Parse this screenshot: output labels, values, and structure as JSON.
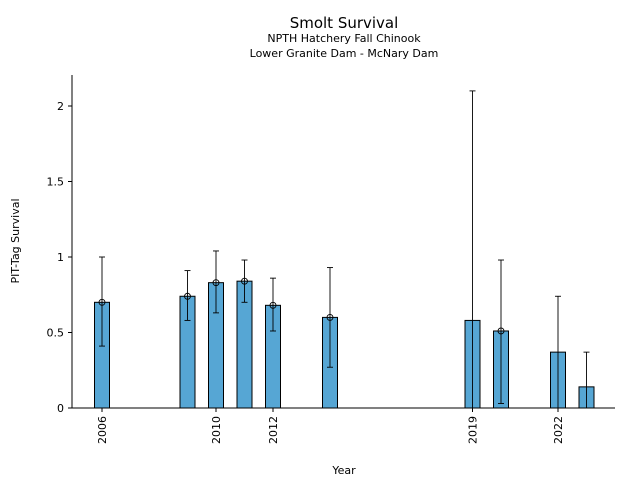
{
  "chart_data": {
    "type": "bar",
    "title": "Smolt Survival",
    "subtitle_lines": [
      "NPTH Hatchery Fall Chinook",
      "Lower Granite Dam - McNary Dam"
    ],
    "xlabel": "Year",
    "ylabel": "PIT-Tag Survival",
    "xlim": [
      2005.2,
      2023.7
    ],
    "ylim": [
      0,
      2.2
    ],
    "x_ticks": [
      2006,
      2010,
      2012,
      2019,
      2022
    ],
    "y_ticks": [
      0,
      0.5,
      1,
      1.5,
      2
    ],
    "y_tick_labels": [
      "0",
      "0.5",
      "1",
      "1.5",
      "2"
    ],
    "grid": false,
    "legend": "none",
    "bar_color": "#56A6D4",
    "bars": [
      {
        "x": 2006,
        "value": 0.7,
        "lower": 0.41,
        "upper": 1.0
      },
      {
        "x": 2009,
        "value": 0.74,
        "lower": 0.58,
        "upper": 0.91
      },
      {
        "x": 2010,
        "value": 0.83,
        "lower": 0.63,
        "upper": 1.04
      },
      {
        "x": 2011,
        "value": 0.84,
        "lower": 0.7,
        "upper": 0.98
      },
      {
        "x": 2012,
        "value": 0.68,
        "lower": 0.51,
        "upper": 0.86
      },
      {
        "x": 2014,
        "value": 0.6,
        "lower": 0.27,
        "upper": 0.93
      },
      {
        "x": 2019,
        "value": 0.58,
        "lower": null,
        "upper": 2.1
      },
      {
        "x": 2020,
        "value": 0.51,
        "lower": 0.03,
        "upper": 0.98
      },
      {
        "x": 2022,
        "value": 0.37,
        "lower": null,
        "upper": 0.74
      },
      {
        "x": 2023,
        "value": 0.14,
        "lower": null,
        "upper": 0.37
      }
    ],
    "point_markers_on": [
      2006,
      2009,
      2010,
      2011,
      2012,
      2014,
      2020
    ]
  }
}
